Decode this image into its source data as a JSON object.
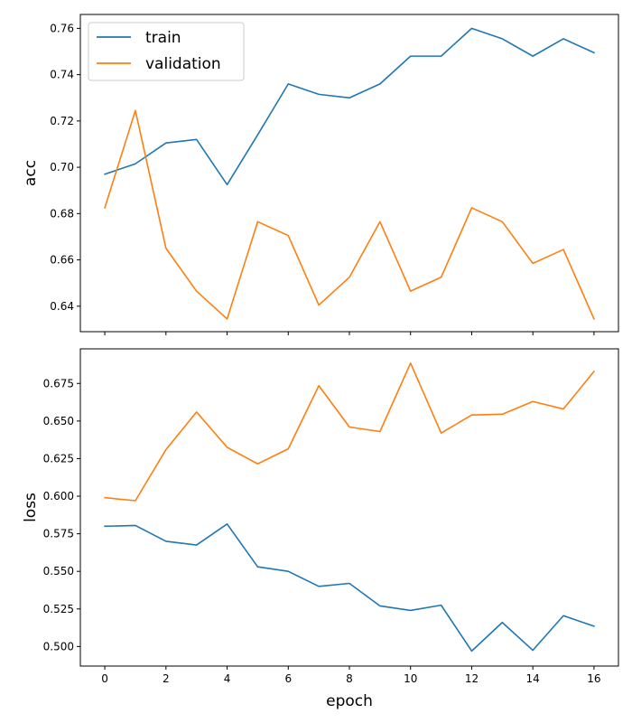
{
  "chart_data": [
    {
      "type": "line",
      "ylabel": "acc",
      "xlabel": "",
      "xlim": [
        -0.8,
        16.8
      ],
      "ylim": [
        0.629,
        0.766
      ],
      "xticks": [
        "0",
        "2",
        "4",
        "6",
        "8",
        "10",
        "12",
        "14",
        "16"
      ],
      "yticks": [
        "0.64",
        "0.66",
        "0.68",
        "0.70",
        "0.72",
        "0.74",
        "0.76"
      ],
      "legend": "upper-left",
      "x": [
        0,
        1,
        2,
        3,
        4,
        5,
        6,
        7,
        8,
        9,
        10,
        11,
        12,
        13,
        14,
        15,
        16
      ],
      "series": [
        {
          "name": "train",
          "color": "#1f77b4",
          "values": [
            0.697,
            0.7015,
            0.7105,
            0.712,
            0.6925,
            0.714,
            0.736,
            0.7315,
            0.73,
            0.736,
            0.748,
            0.748,
            0.76,
            0.7555,
            0.748,
            0.7555,
            0.7495
          ]
        },
        {
          "name": "validation",
          "color": "#ff7f0e",
          "values": [
            0.6825,
            0.7245,
            0.665,
            0.6465,
            0.6345,
            0.6765,
            0.6705,
            0.6405,
            0.6525,
            0.6765,
            0.6465,
            0.6525,
            0.6825,
            0.6765,
            0.6585,
            0.6645,
            0.6345
          ]
        }
      ]
    },
    {
      "type": "line",
      "ylabel": "loss",
      "xlabel": "epoch",
      "xlim": [
        -0.8,
        16.8
      ],
      "ylim": [
        0.487,
        0.698
      ],
      "xticks": [
        "0",
        "2",
        "4",
        "6",
        "8",
        "10",
        "12",
        "14",
        "16"
      ],
      "yticks": [
        "0.500",
        "0.525",
        "0.550",
        "0.575",
        "0.600",
        "0.625",
        "0.650",
        "0.675"
      ],
      "x": [
        0,
        1,
        2,
        3,
        4,
        5,
        6,
        7,
        8,
        9,
        10,
        11,
        12,
        13,
        14,
        15,
        16
      ],
      "series": [
        {
          "color": "#1f77b4",
          "values": [
            0.58,
            0.5805,
            0.57,
            0.5675,
            0.5815,
            0.553,
            0.55,
            0.54,
            0.542,
            0.527,
            0.524,
            0.5275,
            0.497,
            0.516,
            0.4975,
            0.5205,
            0.5135
          ]
        },
        {
          "color": "#ff7f0e",
          "values": [
            0.599,
            0.597,
            0.631,
            0.656,
            0.6325,
            0.6215,
            0.6315,
            0.6735,
            0.646,
            0.643,
            0.6885,
            0.642,
            0.654,
            0.6545,
            0.663,
            0.658,
            0.683
          ]
        }
      ]
    }
  ]
}
